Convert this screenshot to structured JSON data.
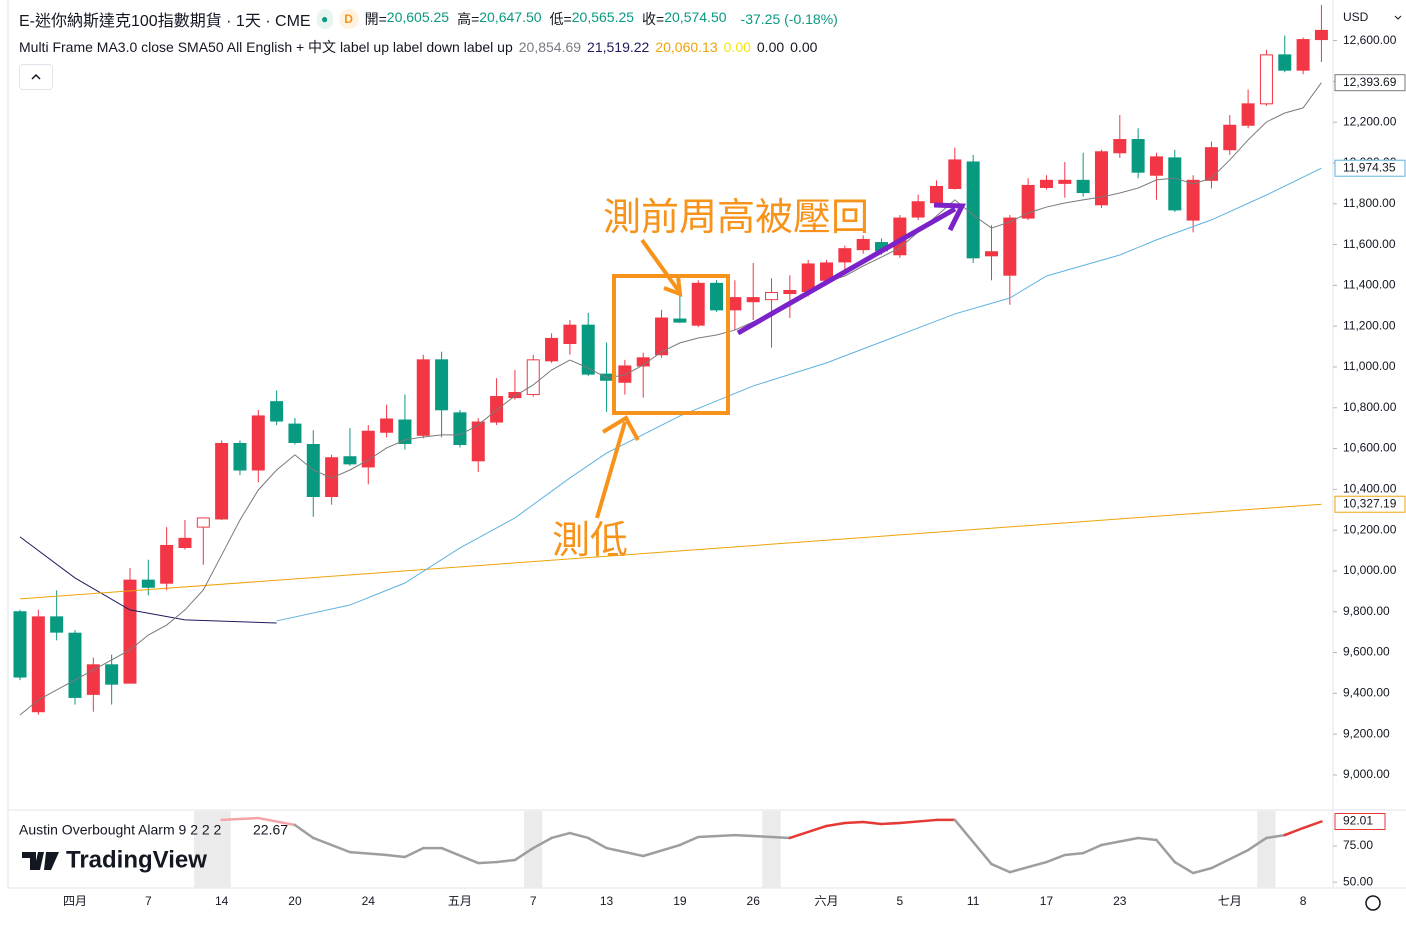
{
  "header": {
    "symbol": "E-迷你納斯達克100指數期貨 · 1天 · CME",
    "interval_badge": "D",
    "ohlc": [
      {
        "label": "開=",
        "value": "20,605.25"
      },
      {
        "label": "高=",
        "value": "20,647.50"
      },
      {
        "label": "低=",
        "value": "20,565.25"
      },
      {
        "label": "收=",
        "value": "20,574.50"
      }
    ],
    "change": "-37.25 (-0.18%)",
    "study": {
      "name": "Multi Frame MA3.0 close SMA50 All English + 中文 label up label down label up",
      "values": [
        {
          "text": "20,854.69",
          "color": "#787b86"
        },
        {
          "text": "21,519.22",
          "color": "#1e1b5e"
        },
        {
          "text": "20,060.13",
          "color": "#f0a30a"
        },
        {
          "text": "0.00",
          "color": "#f5e50a"
        },
        {
          "text": "0.00",
          "color": "#131722"
        },
        {
          "text": "0.00",
          "color": "#131722"
        }
      ]
    },
    "logo": "TradingView"
  },
  "chart_data": [
    {
      "type": "candlestick",
      "currency": "USD",
      "categories": [
        null,
        null,
        null,
        "四月",
        null,
        null,
        null,
        "7",
        null,
        null,
        null,
        "14",
        null,
        null,
        null,
        "20",
        null,
        null,
        null,
        "24",
        null,
        null,
        null,
        null,
        "五月",
        null,
        null,
        null,
        "7",
        null,
        null,
        null,
        "13",
        null,
        null,
        null,
        "19",
        null,
        null,
        null,
        "26",
        null,
        null,
        null,
        "六月",
        null,
        null,
        null,
        "5",
        null,
        null,
        null,
        "11",
        null,
        null,
        null,
        "17",
        null,
        null,
        null,
        "23",
        null,
        null,
        null,
        null,
        null,
        "七月",
        null,
        null,
        null,
        "8",
        null
      ],
      "open": [
        9800,
        9310,
        9775,
        9695,
        9395,
        9540,
        9450,
        9955,
        9940,
        10115,
        10215,
        10255,
        10625,
        10495,
        10830,
        10720,
        10620,
        10365,
        10560,
        10510,
        10680,
        10740,
        10665,
        11035,
        10775,
        10540,
        10730,
        10850,
        10865,
        11030,
        11115,
        11205,
        10965,
        10925,
        11005,
        11060,
        11235,
        11205,
        11410,
        11280,
        11320,
        11330,
        11360,
        11370,
        11425,
        11515,
        11575,
        11610,
        11550,
        11735,
        11805,
        11875,
        12005,
        11545,
        11450,
        11730,
        11880,
        11900,
        11915,
        11795,
        12050,
        12115,
        11940,
        12025,
        11720,
        11915,
        12065,
        12185,
        12290,
        12530,
        12455,
        12605
      ],
      "high": [
        9810,
        9810,
        9905,
        9710,
        9575,
        9590,
        10015,
        10055,
        10215,
        10250,
        10260,
        10640,
        10640,
        10790,
        10885,
        10750,
        10690,
        10570,
        10700,
        10715,
        10815,
        10865,
        11060,
        11075,
        10790,
        10750,
        10945,
        10985,
        11060,
        11165,
        11230,
        11265,
        11120,
        11035,
        11070,
        11280,
        11375,
        11425,
        11425,
        11425,
        11510,
        11435,
        11450,
        11525,
        11525,
        11595,
        11645,
        11630,
        11745,
        11845,
        11915,
        12075,
        12040,
        11695,
        11745,
        11925,
        11940,
        12005,
        12050,
        12065,
        12235,
        12170,
        12050,
        12065,
        11940,
        12105,
        12235,
        12360,
        12555,
        12625,
        12615,
        12775
      ],
      "low": [
        9465,
        9295,
        9660,
        9345,
        9310,
        9345,
        9450,
        9880,
        9905,
        10105,
        10030,
        10250,
        10470,
        10435,
        10715,
        10620,
        10265,
        10325,
        10515,
        10425,
        10655,
        10595,
        10650,
        10655,
        10605,
        10485,
        10715,
        10840,
        10855,
        11020,
        11060,
        10955,
        10780,
        10865,
        10850,
        11045,
        11215,
        11195,
        11270,
        11180,
        11230,
        11095,
        11240,
        11345,
        11400,
        11450,
        11555,
        11550,
        11535,
        11720,
        11795,
        11870,
        11510,
        11425,
        11305,
        11720,
        11870,
        11830,
        11835,
        11780,
        12025,
        11925,
        11820,
        11760,
        11660,
        11875,
        12040,
        12170,
        12280,
        12445,
        12435,
        12495
      ],
      "close": [
        9480,
        9775,
        9700,
        9380,
        9540,
        9445,
        9955,
        9920,
        10125,
        10160,
        10260,
        10625,
        10495,
        10760,
        10735,
        10630,
        10365,
        10555,
        10525,
        10685,
        10745,
        10625,
        11035,
        10790,
        10620,
        10730,
        10855,
        10875,
        11035,
        11140,
        11205,
        10965,
        10935,
        11005,
        11045,
        11240,
        11220,
        11410,
        11280,
        11340,
        11340,
        11365,
        11375,
        11505,
        11510,
        11580,
        11625,
        11570,
        11730,
        11810,
        11885,
        12015,
        11535,
        11565,
        11730,
        11890,
        11915,
        11915,
        11855,
        12055,
        12115,
        11955,
        12030,
        11770,
        11915,
        12075,
        12185,
        12290,
        12530,
        12455,
        12605,
        12650
      ],
      "up_color": "#f23645",
      "down_color": "#089981",
      "hollow": [
        10,
        28,
        41,
        68
      ],
      "ylim": [
        8838,
        12799
      ],
      "yticks": [
        {
          "value": 9000,
          "label": "9,000.00"
        },
        {
          "value": 9200,
          "label": "9,200.00"
        },
        {
          "value": 9400,
          "label": "9,400.00"
        },
        {
          "value": 9600,
          "label": "9,600.00"
        },
        {
          "value": 9800,
          "label": "9,800.00"
        },
        {
          "value": 10000,
          "label": "10,000.00"
        },
        {
          "value": 10200,
          "label": "10,200.00"
        },
        {
          "value": 10400,
          "label": "10,400.00"
        },
        {
          "value": 10600,
          "label": "10,600.00"
        },
        {
          "value": 10800,
          "label": "10,800.00"
        },
        {
          "value": 11000,
          "label": "11,000.00"
        },
        {
          "value": 11200,
          "label": "11,200.00"
        },
        {
          "value": 11400,
          "label": "11,400.00"
        },
        {
          "value": 11600,
          "label": "11,600.00"
        },
        {
          "value": 11800,
          "label": "11,800.00"
        },
        {
          "value": 12000,
          "label": "12,000.00"
        },
        {
          "value": 12200,
          "label": "12,200.00"
        },
        {
          "value": 12400,
          "label": "12,400.00"
        },
        {
          "value": 12600,
          "label": "12,600.00"
        }
      ],
      "overlays": [
        {
          "color": "#1e1b5e",
          "x": [
            0,
            3,
            6,
            9,
            14
          ],
          "values": [
            10167,
            9966,
            9809,
            9760,
            9745
          ]
        },
        {
          "color": "#f0a30a",
          "x": [
            0,
            71
          ],
          "values": [
            9863,
            10327.19
          ],
          "last_label": "10,327.19"
        },
        {
          "color": "#5fb2e0",
          "x": [
            14,
            18,
            21,
            24,
            27,
            30,
            32,
            36,
            40,
            44,
            48,
            51,
            54,
            56,
            60,
            62,
            65,
            68,
            71
          ],
          "values": [
            9755,
            9833,
            9941,
            10113,
            10260,
            10456,
            10578,
            10760,
            10907,
            11020,
            11157,
            11260,
            11338,
            11446,
            11549,
            11623,
            11721,
            11843,
            11974.35
          ],
          "last_label": "11,974.35"
        },
        {
          "color": "#7a7a7a",
          "x": [
            0,
            1,
            2,
            3,
            4,
            5,
            6,
            7,
            8,
            9,
            10,
            11,
            12,
            13,
            14,
            15,
            16,
            17,
            18,
            19,
            20,
            21,
            22,
            23,
            24,
            25,
            26,
            27,
            28,
            29,
            30,
            31,
            32,
            33,
            34,
            35,
            36,
            37,
            38,
            39,
            40,
            41,
            42,
            43,
            44,
            45,
            46,
            47,
            48,
            49,
            50,
            51,
            52,
            53,
            54,
            55,
            56,
            57,
            58,
            59,
            60,
            61,
            62,
            63,
            64,
            65,
            66,
            67,
            68,
            69,
            70,
            71
          ],
          "values": [
            9294,
            9368,
            9417,
            9466,
            9515,
            9564,
            9613,
            9686,
            9735,
            9809,
            9907,
            10078,
            10250,
            10397,
            10495,
            10569,
            10495,
            10456,
            10495,
            10544,
            10603,
            10642,
            10657,
            10667,
            10667,
            10716,
            10789,
            10858,
            10912,
            10985,
            11034,
            10995,
            10946,
            10961,
            11010,
            11074,
            11118,
            11142,
            11157,
            11181,
            11221,
            11260,
            11304,
            11368,
            11417,
            11446,
            11495,
            11539,
            11583,
            11662,
            11740,
            11819,
            11745,
            11681,
            11711,
            11755,
            11784,
            11804,
            11819,
            11833,
            11853,
            11877,
            11917,
            11926,
            11897,
            11926,
            12015,
            12113,
            12201,
            12245,
            12270,
            12393.69
          ],
          "last_label": "12,393.69"
        }
      ],
      "annotations": [
        {
          "text": "測前周高被壓回"
        },
        {
          "text": "測低"
        }
      ]
    },
    {
      "type": "line",
      "title": "Austin Overbought Alarm 9 2 2 2",
      "legend_value": "22.67",
      "x": [
        11,
        13,
        15,
        16,
        18,
        20,
        21,
        22,
        23,
        25,
        26,
        27,
        28,
        29,
        30,
        31,
        32,
        34,
        36,
        37,
        39,
        42,
        44,
        45,
        46,
        47,
        48,
        50,
        51,
        53,
        54,
        56,
        57,
        58,
        59,
        61,
        62,
        63,
        64,
        65,
        67,
        68,
        69,
        70,
        71
      ],
      "values": [
        93.1,
        94.4,
        89.6,
        80.6,
        70.8,
        68.8,
        67.4,
        73.6,
        73.6,
        63.2,
        63.9,
        65.3,
        73.6,
        80.6,
        84.0,
        80.6,
        73.6,
        68.1,
        75.7,
        81.3,
        82.6,
        80.6,
        88.9,
        91.0,
        91.7,
        90.3,
        91.0,
        93.1,
        93.1,
        62.5,
        56.9,
        63.9,
        68.8,
        70.1,
        75.7,
        80.6,
        79.2,
        63.9,
        56.3,
        59.7,
        72.2,
        80.6,
        82.6,
        87.5,
        92.01
      ],
      "colors": [
        "#f5a3a8",
        "#f5a3a8",
        "#f5a3a8",
        "#9e9e9e",
        "#9e9e9e",
        "#9e9e9e",
        "#9e9e9e",
        "#9e9e9e",
        "#9e9e9e",
        "#9e9e9e",
        "#9e9e9e",
        "#9e9e9e",
        "#9e9e9e",
        "#9e9e9e",
        "#9e9e9e",
        "#9e9e9e",
        "#9e9e9e",
        "#9e9e9e",
        "#9e9e9e",
        "#9e9e9e",
        "#9e9e9e",
        "#9e9e9e",
        "#e53935",
        "#e53935",
        "#e53935",
        "#e53935",
        "#e53935",
        "#e53935",
        "#e53935",
        "#9e9e9e",
        "#9e9e9e",
        "#9e9e9e",
        "#9e9e9e",
        "#9e9e9e",
        "#9e9e9e",
        "#9e9e9e",
        "#9e9e9e",
        "#9e9e9e",
        "#9e9e9e",
        "#9e9e9e",
        "#9e9e9e",
        "#9e9e9e",
        "#9e9e9e",
        "#e53935",
        "#e53935"
      ],
      "shaded": [
        10,
        11,
        28,
        41,
        68
      ],
      "ylim": [
        48,
        98.6
      ],
      "yticks": [
        {
          "value": 75,
          "label": "75.00"
        },
        {
          "value": 50,
          "label": "50.00"
        }
      ]
    }
  ]
}
